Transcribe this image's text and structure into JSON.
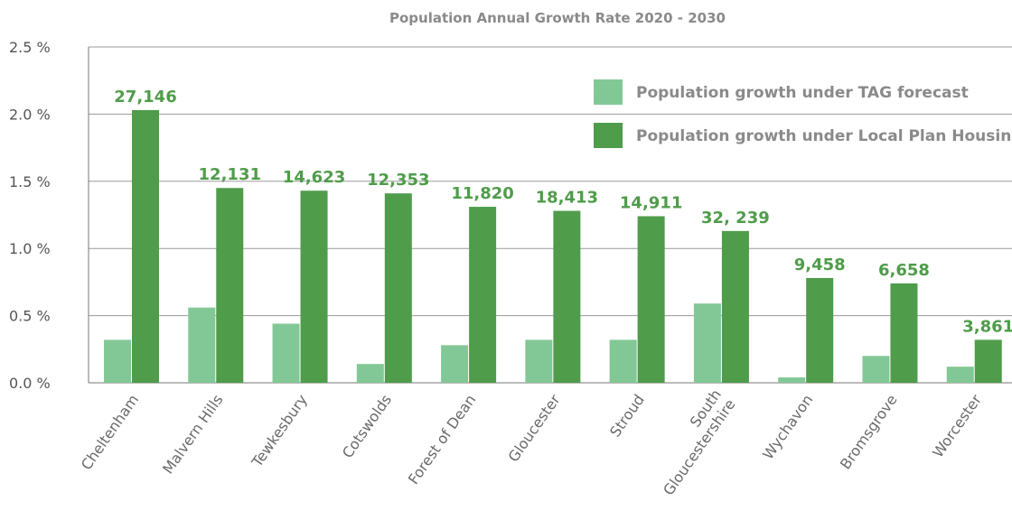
{
  "chart_data": {
    "type": "bar",
    "title": "Population Annual Growth Rate 2020 - 2030",
    "xlabel": "",
    "ylabel": "",
    "ylim": [
      0,
      2.5
    ],
    "yticks": [
      0,
      0.5,
      1.0,
      1.5,
      2.0,
      2.5
    ],
    "ytick_labels": [
      "0.0 %",
      "0.5 %",
      "1.0 %",
      "1.5 %",
      "2.0 %",
      "2.5 %"
    ],
    "grid": true,
    "legend_position": "top-right",
    "categories": [
      "Cheltenham",
      "Malvern Hills",
      "Tewkesbury",
      "Cotswolds",
      "Forest of Dean",
      "Gloucester",
      "Stroud",
      "South Gloucestershire",
      "Wychavon",
      "Bromsgrove",
      "Worcester"
    ],
    "series": [
      {
        "name": "Population growth under TAG forecast",
        "color": "#82c896",
        "values": [
          0.32,
          0.56,
          0.44,
          0.14,
          0.28,
          0.32,
          0.32,
          0.59,
          0.04,
          0.2,
          0.12
        ]
      },
      {
        "name": "Population growth under Local Plan Housing",
        "color": "#4f9c4a",
        "values": [
          2.03,
          1.45,
          1.43,
          1.41,
          1.31,
          1.28,
          1.24,
          1.13,
          0.78,
          0.74,
          0.32
        ],
        "labels": [
          "27,146",
          "12,131",
          "14,623",
          "12,353",
          "11,820",
          "18,413",
          "14,911",
          "32, 239",
          "9,458",
          "6,658",
          "3,861"
        ]
      }
    ]
  }
}
